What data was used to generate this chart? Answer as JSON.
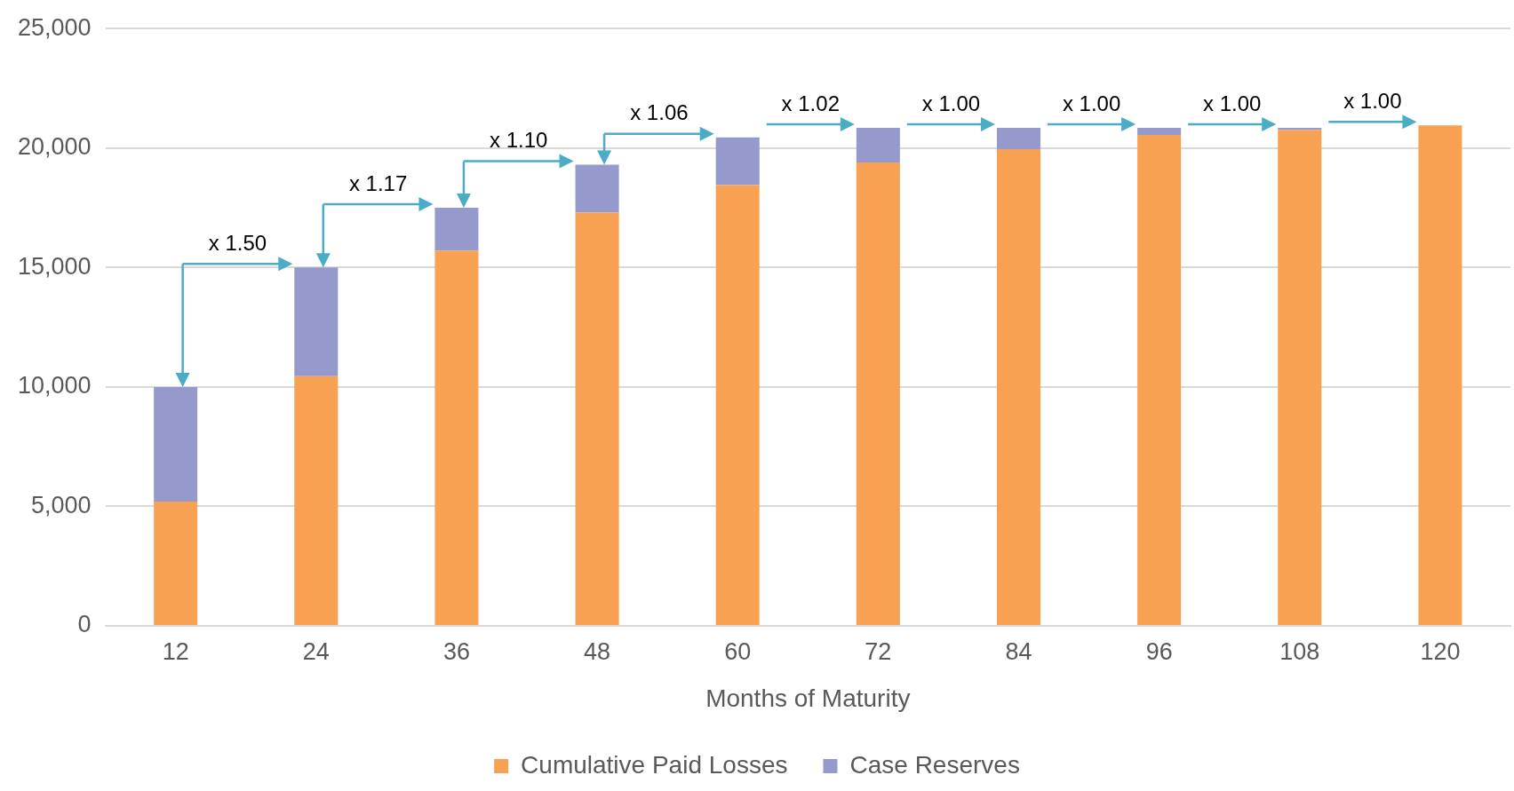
{
  "chart_data": {
    "type": "bar",
    "stacked": true,
    "xlabel": "Months of Maturity",
    "categories": [
      "12",
      "24",
      "36",
      "48",
      "60",
      "72",
      "84",
      "96",
      "108",
      "120"
    ],
    "series": [
      {
        "name": "Cumulative Paid Losses",
        "color": "#f9a152",
        "values": [
          5200,
          10450,
          15700,
          17300,
          18450,
          19400,
          19950,
          20550,
          20750,
          20950
        ]
      },
      {
        "name": "Case Reserves",
        "color": "#9599cb",
        "values": [
          4800,
          4550,
          1800,
          2000,
          2000,
          1450,
          900,
          300,
          100,
          0
        ]
      }
    ],
    "ylim": [
      0,
      25000
    ],
    "yticks": [
      {
        "value": 0,
        "label": "0"
      },
      {
        "value": 5000,
        "label": "5,000"
      },
      {
        "value": 10000,
        "label": "10,000"
      },
      {
        "value": 15000,
        "label": "15,000"
      },
      {
        "value": 20000,
        "label": "20,000"
      },
      {
        "value": 25000,
        "label": "25,000"
      }
    ],
    "grid": "y",
    "legend": "bottom",
    "annotations": [
      {
        "text": "x 1.50",
        "x": "24",
        "y": 15000
      },
      {
        "text": "x 1.17",
        "x": "36",
        "y": 17500
      },
      {
        "text": "x 1.10",
        "x": "48",
        "y": 19300
      },
      {
        "text": "x 1.06",
        "x": "60",
        "y": 20450
      },
      {
        "text": "x 1.02",
        "x": "72",
        "y": 20850
      },
      {
        "text": "x 1.00",
        "x": "84",
        "y": 20850
      },
      {
        "text": "x 1.00",
        "x": "96",
        "y": 20850
      },
      {
        "text": "x 1.00",
        "x": "108",
        "y": 20850
      },
      {
        "text": "x 1.00",
        "x": "120",
        "y": 20950
      }
    ]
  }
}
